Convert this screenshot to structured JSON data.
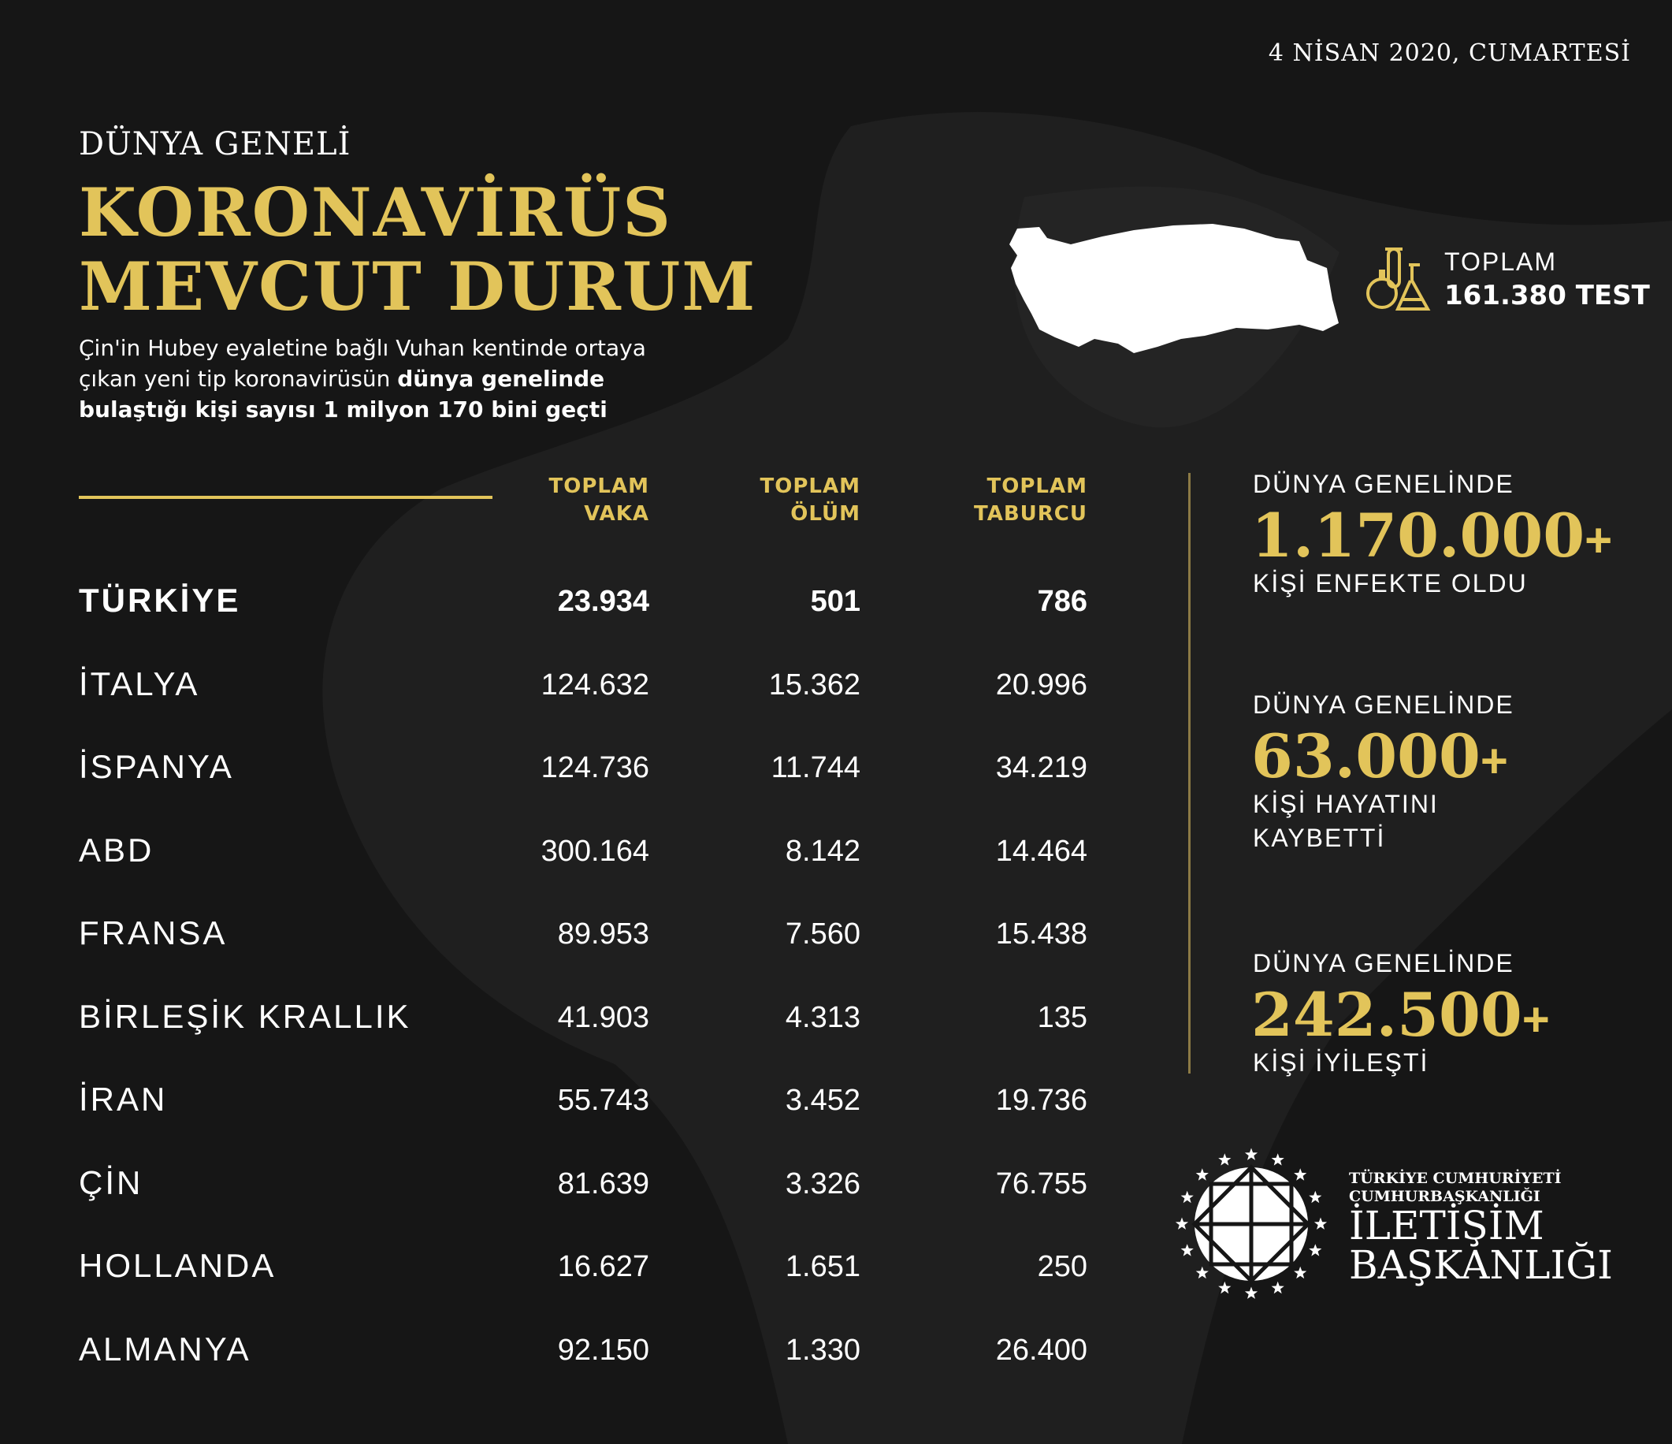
{
  "date": "4 NİSAN 2020, CUMARTESİ",
  "header": {
    "pre_title": "DÜNYA GENELİ",
    "title_line1": "KORONAVİRÜS",
    "title_line2": "MEVCUT DURUM"
  },
  "intro": {
    "normal": "Çin'in Hubey eyaletine bağlı Vuhan kentinde ortaya çıkan yeni tip koronavirüsün ",
    "bold": "dünya genelinde bulaştığı kişi sayısı 1 milyon 170 bini geçti"
  },
  "table": {
    "columns": [
      {
        "line1": "TOPLAM",
        "line2": "VAKA"
      },
      {
        "line1": "TOPLAM",
        "line2": "ÖLÜM"
      },
      {
        "line1": "TOPLAM",
        "line2": "TABURCU"
      }
    ],
    "rows": [
      {
        "country": "TÜRKİYE",
        "cases": "23.934",
        "deaths": "501",
        "recovered": "786"
      },
      {
        "country": "İTALYA",
        "cases": "124.632",
        "deaths": "15.362",
        "recovered": "20.996"
      },
      {
        "country": "İSPANYA",
        "cases": "124.736",
        "deaths": "11.744",
        "recovered": "34.219"
      },
      {
        "country": "ABD",
        "cases": "300.164",
        "deaths": "8.142",
        "recovered": "14.464"
      },
      {
        "country": "FRANSA",
        "cases": "89.953",
        "deaths": "7.560",
        "recovered": "15.438"
      },
      {
        "country": "BİRLEŞİK KRALLIK",
        "cases": "41.903",
        "deaths": "4.313",
        "recovered": "135"
      },
      {
        "country": "İRAN",
        "cases": "55.743",
        "deaths": "3.452",
        "recovered": "19.736"
      },
      {
        "country": "ÇİN",
        "cases": "81.639",
        "deaths": "3.326",
        "recovered": "76.755"
      },
      {
        "country": "HOLLANDA",
        "cases": "16.627",
        "deaths": "1.651",
        "recovered": "250"
      },
      {
        "country": "ALMANYA",
        "cases": "92.150",
        "deaths": "1.330",
        "recovered": "26.400"
      }
    ]
  },
  "tests": {
    "label": "TOPLAM",
    "value": "161.380 TEST",
    "icon": "lab-flasks-icon"
  },
  "stats": [
    {
      "label": "DÜNYA GENELİNDE",
      "value": "1.170.000",
      "plus": "+",
      "desc1": "KİŞİ ENFEKTE OLDU",
      "desc2": ""
    },
    {
      "label": "DÜNYA GENELİNDE",
      "value": "63.000",
      "plus": "+",
      "desc1": "KİŞİ HAYATINI",
      "desc2": "KAYBETTİ"
    },
    {
      "label": "DÜNYA GENELİNDE",
      "value": "242.500",
      "plus": "+",
      "desc1": "KİŞİ İYİLEŞTİ",
      "desc2": ""
    }
  ],
  "logo": {
    "line1": "TÜRKİYE CUMHURİYETİ",
    "line2": "CUMHURBAŞKANLIĞI",
    "line3": "İLETİŞİM",
    "line4": "BAŞKANLIĞI"
  },
  "colors": {
    "gold": "#e2c45a",
    "background": "#161616",
    "divider": "#8c7a45"
  }
}
